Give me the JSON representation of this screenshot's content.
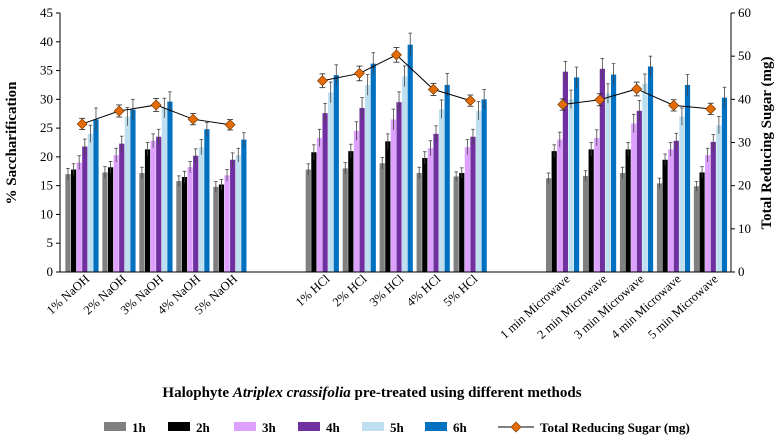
{
  "chart_data": {
    "type": "bar",
    "title": "",
    "xlabel_parts": [
      "Halophyte ",
      "Atriplex crassifolia",
      " pre-treated using different methods"
    ],
    "ylabel": "% Saccharification",
    "y2label": "Total Reducing Sugar (mg)",
    "ylim": [
      0,
      45
    ],
    "yticks": [
      "0",
      "5",
      "10",
      "15",
      "20",
      "25",
      "30",
      "35",
      "40",
      "45"
    ],
    "y2lim": [
      0,
      60
    ],
    "y2ticks": [
      "0",
      "10",
      "20",
      "30",
      "40",
      "50",
      "60"
    ],
    "groups": [
      [
        "1% NaOH",
        "2% NaOH",
        "3% NaOH",
        "4% NaOH",
        "5% NaOH"
      ],
      [
        "1% HCl",
        "2% HCl",
        "3% HCl",
        "4% HCl",
        "5% HCl"
      ],
      [
        "1 min Microwave",
        "2 min Microwave",
        "3 min Microwave",
        "4 min Microwave",
        "5 min Microwave"
      ]
    ],
    "categories": [
      "1% NaOH",
      "2% NaOH",
      "3% NaOH",
      "4% NaOH",
      "5% NaOH",
      "1% HCl",
      "2% HCl",
      "3% HCl",
      "4% HCl",
      "5% HCl",
      "1 min Microwave",
      "2 min Microwave",
      "3 min Microwave",
      "4 min Microwave",
      "5 min Microwave"
    ],
    "series": [
      {
        "name": "1h",
        "color": "#808080",
        "values": [
          17.0,
          17.3,
          17.2,
          15.8,
          14.8,
          17.8,
          18.0,
          18.9,
          17.2,
          16.6,
          16.3,
          16.7,
          17.2,
          15.4,
          14.9
        ],
        "errors": [
          1.0,
          1.0,
          1.0,
          0.9,
          0.9,
          1.0,
          1.0,
          1.0,
          1.0,
          0.8,
          0.9,
          0.9,
          1.0,
          0.9,
          0.8
        ]
      },
      {
        "name": "2h",
        "color": "#000000",
        "values": [
          17.8,
          18.2,
          21.3,
          16.5,
          15.2,
          20.8,
          21.0,
          22.7,
          19.8,
          17.2,
          21.0,
          21.3,
          21.3,
          19.5,
          17.3
        ],
        "errors": [
          1.0,
          1.0,
          1.2,
          1.0,
          0.9,
          1.3,
          1.2,
          1.3,
          1.1,
          0.9,
          1.1,
          1.2,
          1.2,
          1.0,
          1.0
        ]
      },
      {
        "name": "3h",
        "color": "#dda0ff",
        "values": [
          19.0,
          20.3,
          22.8,
          18.2,
          16.8,
          23.3,
          24.5,
          26.5,
          21.5,
          21.7,
          23.0,
          23.3,
          25.8,
          21.3,
          20.3
        ],
        "errors": [
          1.2,
          1.2,
          1.2,
          1.0,
          1.0,
          1.5,
          1.6,
          1.8,
          1.3,
          1.3,
          1.3,
          1.4,
          1.6,
          1.2,
          1.2
        ]
      },
      {
        "name": "4h",
        "color": "#7030a0",
        "values": [
          21.8,
          22.3,
          23.5,
          20.2,
          19.5,
          27.6,
          28.5,
          29.5,
          24.0,
          23.5,
          34.8,
          35.3,
          28.0,
          22.8,
          22.6
        ],
        "errors": [
          1.3,
          1.3,
          1.3,
          1.2,
          1.2,
          1.7,
          1.8,
          1.8,
          1.4,
          1.3,
          1.8,
          1.8,
          1.8,
          1.3,
          1.3
        ]
      },
      {
        "name": "5h",
        "color": "#bddff0",
        "values": [
          24.0,
          27.0,
          28.5,
          21.7,
          20.3,
          31.2,
          32.5,
          34.0,
          28.3,
          28.0,
          30.0,
          31.0,
          32.7,
          27.0,
          25.5
        ],
        "errors": [
          1.5,
          1.6,
          1.7,
          1.3,
          1.2,
          1.8,
          1.8,
          1.8,
          1.6,
          1.6,
          1.6,
          1.7,
          1.7,
          1.5,
          1.5
        ]
      },
      {
        "name": "6h",
        "color": "#0070c0",
        "values": [
          26.5,
          28.2,
          29.6,
          24.8,
          23.0,
          34.2,
          36.2,
          39.5,
          32.5,
          30.0,
          33.8,
          34.3,
          35.7,
          32.5,
          30.3
        ],
        "errors": [
          2.0,
          1.8,
          1.7,
          1.2,
          1.2,
          1.8,
          1.9,
          2.0,
          2.0,
          1.7,
          1.8,
          1.9,
          1.8,
          1.8,
          1.8
        ]
      }
    ],
    "line": {
      "name": "Total Reducing Sugar (mg)",
      "axis": "right",
      "color": "#e36c09",
      "values": [
        34.3,
        37.3,
        38.7,
        35.4,
        34.1,
        44.3,
        46.0,
        50.3,
        42.3,
        39.7,
        38.8,
        39.9,
        42.4,
        38.6,
        37.8
      ],
      "errors": [
        1.3,
        1.4,
        1.5,
        1.3,
        1.2,
        1.6,
        1.7,
        1.7,
        1.4,
        1.3,
        1.3,
        1.4,
        1.6,
        1.3,
        1.3
      ]
    },
    "legend_position": "bottom"
  }
}
